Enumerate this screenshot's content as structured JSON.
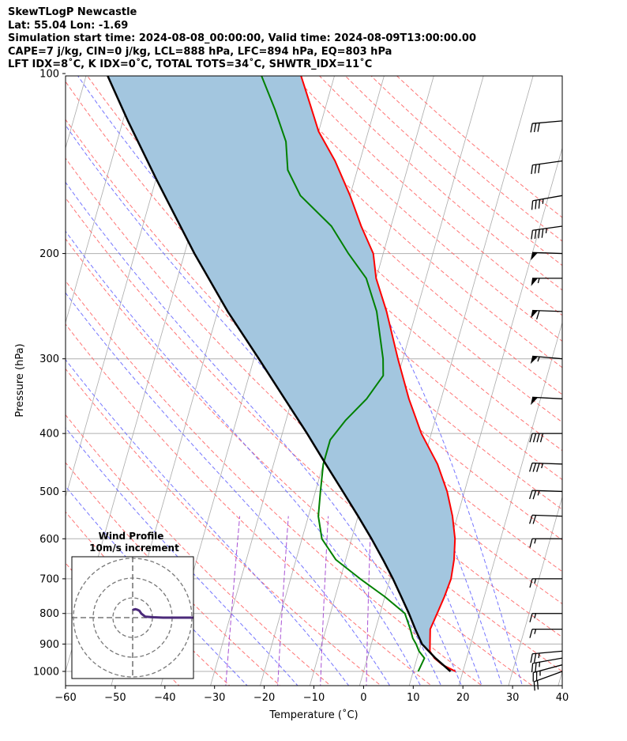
{
  "header": {
    "line1": "SkewTLogP Newcastle",
    "line2": "Lat: 55.04   Lon: -1.69",
    "line3": "Simulation start time: 2024-08-08_00:00:00, Valid time: 2024-08-09T13:00:00.00",
    "line4": "CAPE=7 j/kg, CIN=0 j/kg, LCL=888 hPa, LFC=894 hPa, EQ=803 hPa",
    "line5": "LFT IDX=8˚C, K IDX=0˚C, TOTAL TOTS=34˚C, SHWTR_IDX=11˚C"
  },
  "colors": {
    "temperature": "#ff0000",
    "dewpoint": "#008000",
    "parcel": "#000000",
    "cape_fill": "#a3c6df",
    "isotherm": "#aaaaaa",
    "dry_adiabat": "#ff6666",
    "moist_adiabat": "#6666ff",
    "mixing_ratio": "#9933cc",
    "hodograph": "#4b2a7a"
  },
  "chart_data": [
    {
      "type": "line",
      "subtype": "skew-t log-p",
      "xlabel": "Temperature (˚C)",
      "ylabel": "Pressure (hPa)",
      "xlim": [
        -60,
        40
      ],
      "ylim": [
        1050,
        100
      ],
      "y_scale": "log",
      "grid": true,
      "x_ticks": [
        -60,
        -50,
        -40,
        -30,
        -20,
        -10,
        0,
        10,
        20,
        30,
        40
      ],
      "x_tick_labels": [
        "−60",
        "−50",
        "−40",
        "−30",
        "−20",
        "−10",
        "0",
        "10",
        "20",
        "30",
        "40"
      ],
      "y_ticks": [
        1000,
        900,
        800,
        700,
        600,
        500,
        400,
        300,
        200,
        100
      ],
      "y_tick_labels": [
        "1000",
        "900",
        "800",
        "700",
        "600",
        "500",
        "400",
        "300",
        "200",
        "100"
      ],
      "series": [
        {
          "key": "temperature",
          "points": [
            [
              1000,
              18.5
            ],
            [
              975,
              15.5
            ],
            [
              950,
              13.5
            ],
            [
              925,
              12.2
            ],
            [
              900,
              11.8
            ],
            [
              850,
              11
            ],
            [
              800,
              11.5
            ],
            [
              750,
              12
            ],
            [
              700,
              12.3
            ],
            [
              650,
              11.8
            ],
            [
              600,
              10.8
            ],
            [
              550,
              9
            ],
            [
              500,
              6.5
            ],
            [
              450,
              3
            ],
            [
              400,
              -2
            ],
            [
              350,
              -6.5
            ],
            [
              300,
              -11
            ],
            [
              250,
              -16
            ],
            [
              220,
              -20
            ],
            [
              200,
              -22
            ],
            [
              180,
              -26
            ],
            [
              160,
              -30
            ],
            [
              140,
              -35
            ],
            [
              125,
              -40
            ],
            [
              110,
              -44
            ],
            [
              100,
              -47
            ]
          ]
        },
        {
          "key": "dewpoint",
          "points": [
            [
              1000,
              11
            ],
            [
              950,
              11.5
            ],
            [
              925,
              10
            ],
            [
              900,
              9
            ],
            [
              880,
              8
            ],
            [
              850,
              7
            ],
            [
              800,
              5
            ],
            [
              750,
              0
            ],
            [
              700,
              -6
            ],
            [
              650,
              -12
            ],
            [
              600,
              -16
            ],
            [
              550,
              -18
            ],
            [
              500,
              -19
            ],
            [
              450,
              -20
            ],
            [
              410,
              -20
            ],
            [
              380,
              -18
            ],
            [
              350,
              -15
            ],
            [
              320,
              -13
            ],
            [
              300,
              -14
            ],
            [
              250,
              -18
            ],
            [
              220,
              -22
            ],
            [
              200,
              -27
            ],
            [
              180,
              -32
            ],
            [
              160,
              -40
            ],
            [
              145,
              -44
            ],
            [
              130,
              -46
            ],
            [
              115,
              -50
            ],
            [
              100,
              -55
            ]
          ]
        },
        {
          "key": "parcel",
          "points": [
            [
              1000,
              17.5
            ],
            [
              950,
              13.7
            ],
            [
              900,
              10.2
            ],
            [
              850,
              8
            ],
            [
              800,
              5.8
            ],
            [
              750,
              3.3
            ],
            [
              700,
              0.6
            ],
            [
              650,
              -2.5
            ],
            [
              600,
              -6
            ],
            [
              550,
              -10
            ],
            [
              500,
              -14.5
            ],
            [
              450,
              -19.5
            ],
            [
              400,
              -25
            ],
            [
              350,
              -31.5
            ],
            [
              300,
              -39
            ],
            [
              250,
              -48
            ],
            [
              200,
              -58
            ],
            [
              150,
              -70
            ],
            [
              120,
              -79
            ],
            [
              100,
              -86
            ]
          ]
        }
      ],
      "cape_fill_between": [
        "temperature",
        "parcel"
      ],
      "wind_barbs": [
        {
          "p": 1000,
          "speed_kt": 20,
          "dir_deg": 250
        },
        {
          "p": 975,
          "speed_kt": 25,
          "dir_deg": 255
        },
        {
          "p": 950,
          "speed_kt": 25,
          "dir_deg": 260
        },
        {
          "p": 925,
          "speed_kt": 25,
          "dir_deg": 265
        },
        {
          "p": 850,
          "speed_kt": 15,
          "dir_deg": 270
        },
        {
          "p": 800,
          "speed_kt": 15,
          "dir_deg": 270
        },
        {
          "p": 700,
          "speed_kt": 15,
          "dir_deg": 270
        },
        {
          "p": 600,
          "speed_kt": 15,
          "dir_deg": 270
        },
        {
          "p": 550,
          "speed_kt": 20,
          "dir_deg": 272
        },
        {
          "p": 500,
          "speed_kt": 25,
          "dir_deg": 272
        },
        {
          "p": 450,
          "speed_kt": 35,
          "dir_deg": 272
        },
        {
          "p": 400,
          "speed_kt": 40,
          "dir_deg": 270
        },
        {
          "p": 350,
          "speed_kt": 50,
          "dir_deg": 273
        },
        {
          "p": 300,
          "speed_kt": 55,
          "dir_deg": 275
        },
        {
          "p": 250,
          "speed_kt": 60,
          "dir_deg": 272
        },
        {
          "p": 220,
          "speed_kt": 55,
          "dir_deg": 270
        },
        {
          "p": 200,
          "speed_kt": 50,
          "dir_deg": 272
        },
        {
          "p": 180,
          "speed_kt": 45,
          "dir_deg": 262
        },
        {
          "p": 160,
          "speed_kt": 35,
          "dir_deg": 260
        },
        {
          "p": 140,
          "speed_kt": 30,
          "dir_deg": 262
        },
        {
          "p": 120,
          "speed_kt": 30,
          "dir_deg": 265
        }
      ]
    },
    {
      "type": "line",
      "subtype": "hodograph",
      "title": "Wind Profile",
      "subtitle": "10m/s increment",
      "ring_increment_ms": 10,
      "rings": 3,
      "grid": true,
      "uv_points": [
        [
          -10,
          4
        ],
        [
          -9,
          4.3
        ],
        [
          -8,
          4
        ],
        [
          -7,
          3.5
        ],
        [
          -6,
          2
        ],
        [
          -4,
          0.5
        ],
        [
          0,
          0.2
        ],
        [
          5,
          0
        ],
        [
          10,
          0
        ],
        [
          15,
          0
        ],
        [
          20,
          0
        ],
        [
          25,
          0
        ],
        [
          30,
          0
        ],
        [
          35,
          0
        ],
        [
          40,
          0
        ],
        [
          45,
          0
        ]
      ]
    }
  ]
}
